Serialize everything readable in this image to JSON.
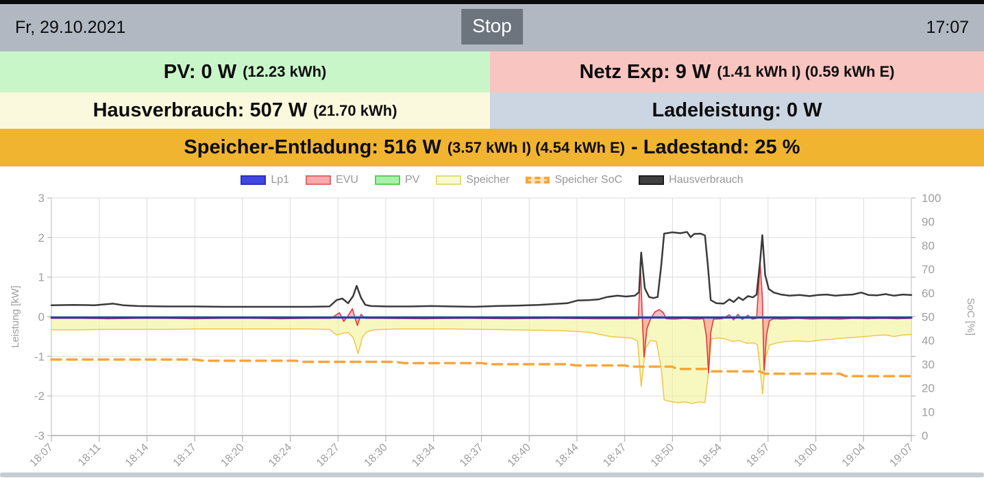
{
  "header": {
    "date": "Fr, 29.10.2021",
    "stop_label": "Stop",
    "time": "17:07"
  },
  "colors": {
    "header_bg": "#b2b8c2",
    "stop_bg": "#6c757d",
    "divider": "#c7cbd3"
  },
  "status_bars": {
    "pv": {
      "text_main": "PV: 0 W",
      "text_detail": "(12.23 kWh)",
      "bg": "#c9f6c9"
    },
    "netz": {
      "text_main": "Netz Exp: 9 W",
      "text_detail": "(1.41 kWh I) (0.59 kWh E)",
      "bg": "#f9c5c1"
    },
    "haus": {
      "text_main": "Hausverbrauch: 507 W",
      "text_detail": "(21.70 kWh)",
      "bg": "#fbf9dd"
    },
    "lade": {
      "text_main": "Ladeleistung: 0 W",
      "text_detail": "",
      "bg": "#ccd5e2"
    },
    "speicher": {
      "text_main": "Speicher-Entladung: 516 W",
      "text_detail": "(3.57 kWh I) (4.54 kWh E)",
      "text_suffix": "- Ladestand: 25 %",
      "bg": "#f0b431"
    }
  },
  "chart_data": {
    "type": "line",
    "title": "",
    "x_axis": {
      "range_minutes": [
        0,
        60
      ],
      "tick_labels": [
        "18:07",
        "18:11",
        "18:14",
        "18:17",
        "18:20",
        "18:24",
        "18:27",
        "18:30",
        "18:34",
        "18:37",
        "18:40",
        "18:44",
        "18:47",
        "18:50",
        "18:54",
        "18:57",
        "19:00",
        "19:04",
        "19:07"
      ]
    },
    "y_left": {
      "label": "Leistung [kW]",
      "min": -3,
      "max": 3,
      "ticks": [
        3,
        2,
        1,
        0,
        -1,
        -2,
        -3
      ]
    },
    "y_right": {
      "label": "SoC [%]",
      "min": 0,
      "max": 100,
      "ticks": [
        100,
        90,
        80,
        70,
        60,
        50,
        40,
        30,
        20,
        10,
        0
      ]
    },
    "grid": true,
    "legend_position": "top-center",
    "legend": [
      {
        "label": "Lp1",
        "fill": "#4046e3",
        "border": "#2d2fbe",
        "type": "solid"
      },
      {
        "label": "EVU",
        "fill": "#f9a9a9",
        "border": "#e06a6a",
        "type": "solid"
      },
      {
        "label": "PV",
        "fill": "#a9f1a9",
        "border": "#5ecc5e",
        "type": "solid"
      },
      {
        "label": "Speicher",
        "fill": "#fafad0",
        "border": "#e2dc7a",
        "type": "solid"
      },
      {
        "label": "Speicher SoC",
        "fill": "#f6a63c",
        "border": "#f6a63c",
        "type": "dashed"
      },
      {
        "label": "Hausverbrauch",
        "fill": "#3f3f3f",
        "border": "#1c1c1c",
        "type": "solid"
      }
    ],
    "series": [
      {
        "name": "Speicher",
        "axis": "left",
        "unit": "kW",
        "color": "#f3c44d",
        "fill": "rgba(240,244,150,0.6)",
        "width": 1.5,
        "points": [
          [
            0,
            -0.33
          ],
          [
            2,
            -0.33
          ],
          [
            4,
            -0.32
          ],
          [
            6,
            -0.32
          ],
          [
            8,
            -0.32
          ],
          [
            10,
            -0.31
          ],
          [
            12,
            -0.31
          ],
          [
            14,
            -0.31
          ],
          [
            16,
            -0.31
          ],
          [
            18,
            -0.31
          ],
          [
            19.4,
            -0.32
          ],
          [
            19.9,
            -0.46
          ],
          [
            20.3,
            -0.42
          ],
          [
            20.7,
            -0.4
          ],
          [
            21.05,
            -0.52
          ],
          [
            21.4,
            -0.93
          ],
          [
            21.7,
            -0.52
          ],
          [
            22.0,
            -0.38
          ],
          [
            22.5,
            -0.33
          ],
          [
            24,
            -0.31
          ],
          [
            26,
            -0.31
          ],
          [
            28,
            -0.31
          ],
          [
            30,
            -0.32
          ],
          [
            32,
            -0.33
          ],
          [
            34,
            -0.34
          ],
          [
            35.5,
            -0.35
          ],
          [
            36.5,
            -0.37
          ],
          [
            37.5,
            -0.39
          ],
          [
            38.3,
            -0.45
          ],
          [
            39,
            -0.5
          ],
          [
            39.8,
            -0.52
          ],
          [
            40.5,
            -0.54
          ],
          [
            40.9,
            -0.62
          ],
          [
            41.15,
            -1.76
          ],
          [
            41.45,
            -0.8
          ],
          [
            41.8,
            -0.6
          ],
          [
            42.2,
            -0.62
          ],
          [
            42.55,
            -1.3
          ],
          [
            42.75,
            -2.1
          ],
          [
            43.2,
            -2.14
          ],
          [
            43.7,
            -2.17
          ],
          [
            44.2,
            -2.15
          ],
          [
            44.7,
            -2.19
          ],
          [
            45.2,
            -2.15
          ],
          [
            45.6,
            -2.17
          ],
          [
            45.85,
            -1.4
          ],
          [
            46.05,
            -0.56
          ],
          [
            46.5,
            -0.53
          ],
          [
            47,
            -0.56
          ],
          [
            47.5,
            -0.62
          ],
          [
            48,
            -0.6
          ],
          [
            48.5,
            -0.67
          ],
          [
            49,
            -0.66
          ],
          [
            49.25,
            -0.7
          ],
          [
            49.45,
            -1.3
          ],
          [
            49.62,
            -1.95
          ],
          [
            49.85,
            -1.0
          ],
          [
            50.1,
            -0.72
          ],
          [
            50.6,
            -0.66
          ],
          [
            51.2,
            -0.63
          ],
          [
            52,
            -0.61
          ],
          [
            52.8,
            -0.63
          ],
          [
            53.6,
            -0.59
          ],
          [
            54.4,
            -0.57
          ],
          [
            55.2,
            -0.54
          ],
          [
            56,
            -0.52
          ],
          [
            56.8,
            -0.5
          ],
          [
            57.6,
            -0.47
          ],
          [
            58.2,
            -0.46
          ],
          [
            58.8,
            -0.5
          ],
          [
            59.4,
            -0.46
          ],
          [
            60,
            -0.45
          ]
        ]
      },
      {
        "name": "EVU",
        "axis": "left",
        "unit": "kW",
        "color": "#e2383f",
        "fill": "rgba(247,124,124,0.5)",
        "width": 1.6,
        "points": [
          [
            0,
            -0.04
          ],
          [
            2,
            -0.04
          ],
          [
            4,
            -0.05
          ],
          [
            6,
            -0.04
          ],
          [
            8,
            -0.04
          ],
          [
            10,
            -0.05
          ],
          [
            12,
            -0.04
          ],
          [
            14,
            -0.04
          ],
          [
            16,
            -0.05
          ],
          [
            18,
            -0.04
          ],
          [
            19.5,
            -0.04
          ],
          [
            20.1,
            0.1
          ],
          [
            20.4,
            -0.12
          ],
          [
            20.7,
            0.03
          ],
          [
            21.0,
            0.2
          ],
          [
            21.2,
            -0.05
          ],
          [
            21.35,
            -0.22
          ],
          [
            21.6,
            0.06
          ],
          [
            21.9,
            -0.04
          ],
          [
            23,
            -0.04
          ],
          [
            26,
            -0.05
          ],
          [
            29,
            -0.04
          ],
          [
            32,
            -0.05
          ],
          [
            35,
            -0.04
          ],
          [
            38,
            -0.05
          ],
          [
            40.5,
            -0.05
          ],
          [
            40.95,
            -0.05
          ],
          [
            41.1,
            1.28
          ],
          [
            41.25,
            -0.2
          ],
          [
            41.35,
            -1.02
          ],
          [
            41.55,
            -0.3
          ],
          [
            41.8,
            -0.06
          ],
          [
            42.1,
            0.12
          ],
          [
            42.4,
            0.18
          ],
          [
            42.7,
            0.1
          ],
          [
            42.9,
            -0.05
          ],
          [
            43.5,
            -0.06
          ],
          [
            44.2,
            -0.04
          ],
          [
            44.9,
            -0.06
          ],
          [
            45.5,
            -0.05
          ],
          [
            45.7,
            -0.5
          ],
          [
            45.85,
            -1.42
          ],
          [
            46.0,
            -0.4
          ],
          [
            46.2,
            -0.06
          ],
          [
            46.8,
            -0.05
          ],
          [
            47.3,
            0.05
          ],
          [
            47.6,
            -0.08
          ],
          [
            47.9,
            0.06
          ],
          [
            48.2,
            -0.07
          ],
          [
            48.6,
            0.04
          ],
          [
            48.9,
            -0.06
          ],
          [
            49.2,
            -0.04
          ],
          [
            49.45,
            1.35
          ],
          [
            49.6,
            0.5
          ],
          [
            49.72,
            -1.35
          ],
          [
            49.9,
            -0.45
          ],
          [
            50.1,
            -0.1
          ],
          [
            50.4,
            -0.05
          ],
          [
            51,
            -0.06
          ],
          [
            52,
            -0.04
          ],
          [
            53,
            -0.06
          ],
          [
            54,
            -0.05
          ],
          [
            55,
            -0.06
          ],
          [
            56,
            -0.04
          ],
          [
            57,
            -0.05
          ],
          [
            58,
            -0.04
          ],
          [
            59,
            -0.05
          ],
          [
            60,
            -0.04
          ]
        ]
      },
      {
        "name": "PV",
        "axis": "left",
        "unit": "kW",
        "color": "#4cc94c",
        "width": 1.5,
        "points": [
          [
            0,
            0
          ],
          [
            60,
            0
          ]
        ]
      },
      {
        "name": "Lp1",
        "axis": "left",
        "unit": "kW",
        "color": "#2b31d5",
        "width": 3,
        "points": [
          [
            0,
            -0.02
          ],
          [
            60,
            -0.02
          ]
        ]
      },
      {
        "name": "Speicher SoC",
        "axis": "right",
        "unit": "%",
        "color": "#f6a63c",
        "width": 3.5,
        "dash": "14,9",
        "points": [
          [
            0,
            32
          ],
          [
            10,
            32
          ],
          [
            10.6,
            31.5
          ],
          [
            17,
            31.5
          ],
          [
            17.6,
            31
          ],
          [
            24,
            31
          ],
          [
            24.6,
            30.5
          ],
          [
            30,
            30.5
          ],
          [
            30.6,
            30
          ],
          [
            36,
            30
          ],
          [
            36.6,
            29.5
          ],
          [
            40,
            29.5
          ],
          [
            40.4,
            29
          ],
          [
            43.3,
            29
          ],
          [
            43.7,
            28
          ],
          [
            45.7,
            28
          ],
          [
            46.1,
            27
          ],
          [
            49.4,
            27
          ],
          [
            49.8,
            26
          ],
          [
            55,
            26
          ],
          [
            55.4,
            25
          ],
          [
            60,
            25
          ]
        ]
      },
      {
        "name": "Hausverbrauch",
        "axis": "left",
        "unit": "kW",
        "color": "#3a3a3a",
        "width": 2.5,
        "points": [
          [
            0,
            0.29
          ],
          [
            1.5,
            0.3
          ],
          [
            3,
            0.29
          ],
          [
            4.3,
            0.33
          ],
          [
            5,
            0.29
          ],
          [
            6,
            0.27
          ],
          [
            8,
            0.26
          ],
          [
            10,
            0.26
          ],
          [
            12,
            0.25
          ],
          [
            14,
            0.25
          ],
          [
            16,
            0.25
          ],
          [
            18,
            0.25
          ],
          [
            19.4,
            0.26
          ],
          [
            19.9,
            0.42
          ],
          [
            20.3,
            0.46
          ],
          [
            20.7,
            0.34
          ],
          [
            21.05,
            0.52
          ],
          [
            21.3,
            0.78
          ],
          [
            21.6,
            0.48
          ],
          [
            21.9,
            0.3
          ],
          [
            22.3,
            0.27
          ],
          [
            23.5,
            0.26
          ],
          [
            25,
            0.26
          ],
          [
            26.5,
            0.27
          ],
          [
            28,
            0.26
          ],
          [
            29.5,
            0.25
          ],
          [
            31,
            0.27
          ],
          [
            32.5,
            0.28
          ],
          [
            34,
            0.3
          ],
          [
            35,
            0.32
          ],
          [
            36,
            0.34
          ],
          [
            36.7,
            0.41
          ],
          [
            37.5,
            0.42
          ],
          [
            38.2,
            0.44
          ],
          [
            38.8,
            0.5
          ],
          [
            39.5,
            0.53
          ],
          [
            40.1,
            0.51
          ],
          [
            40.7,
            0.53
          ],
          [
            41.0,
            0.62
          ],
          [
            41.15,
            1.62
          ],
          [
            41.4,
            0.72
          ],
          [
            41.7,
            0.5
          ],
          [
            42.0,
            0.47
          ],
          [
            42.3,
            0.5
          ],
          [
            42.55,
            1.3
          ],
          [
            42.75,
            2.1
          ],
          [
            43.3,
            2.13
          ],
          [
            43.9,
            2.11
          ],
          [
            44.35,
            2.14
          ],
          [
            44.6,
            2.01
          ],
          [
            44.85,
            2.09
          ],
          [
            45.3,
            2.1
          ],
          [
            45.6,
            2.05
          ],
          [
            45.8,
            1.3
          ],
          [
            46.0,
            0.42
          ],
          [
            46.4,
            0.34
          ],
          [
            46.9,
            0.33
          ],
          [
            47.3,
            0.44
          ],
          [
            47.6,
            0.37
          ],
          [
            47.95,
            0.49
          ],
          [
            48.25,
            0.42
          ],
          [
            48.6,
            0.52
          ],
          [
            48.95,
            0.49
          ],
          [
            49.2,
            0.56
          ],
          [
            49.45,
            1.4
          ],
          [
            49.6,
            2.06
          ],
          [
            49.8,
            1.05
          ],
          [
            50.05,
            0.7
          ],
          [
            50.4,
            0.61
          ],
          [
            50.9,
            0.56
          ],
          [
            51.5,
            0.53
          ],
          [
            52.2,
            0.55
          ],
          [
            52.9,
            0.52
          ],
          [
            53.5,
            0.55
          ],
          [
            54.1,
            0.56
          ],
          [
            54.7,
            0.53
          ],
          [
            55.3,
            0.55
          ],
          [
            55.9,
            0.56
          ],
          [
            56.5,
            0.61
          ],
          [
            57.0,
            0.55
          ],
          [
            57.6,
            0.54
          ],
          [
            58.2,
            0.57
          ],
          [
            58.8,
            0.53
          ],
          [
            59.4,
            0.56
          ],
          [
            60,
            0.55
          ]
        ]
      }
    ]
  }
}
